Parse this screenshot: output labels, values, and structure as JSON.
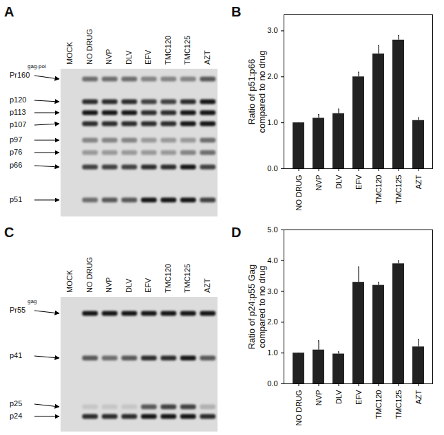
{
  "chart_data": [
    {
      "panel": "B",
      "type": "bar",
      "categories": [
        "NO DRUG",
        "NVP",
        "DLV",
        "EFV",
        "TMC120",
        "TMC125",
        "AZT"
      ],
      "values": [
        1,
        1.1,
        1.2,
        2.0,
        2.5,
        2.8,
        1.05
      ],
      "errors": [
        0,
        0.08,
        0.1,
        0.1,
        0.18,
        0.1,
        0.06
      ],
      "color": "#222222",
      "ylabel": "Ratio of p51:p66\ncompared to no drug",
      "ylim": [
        0,
        3.35
      ],
      "yticks": [
        0,
        1,
        2,
        3
      ]
    },
    {
      "panel": "D",
      "type": "bar",
      "categories": [
        "NO DRUG",
        "NVP",
        "DLV",
        "EFV",
        "TMC120",
        "TMC125",
        "AZT"
      ],
      "values": [
        1,
        1.1,
        0.97,
        3.3,
        3.2,
        3.9,
        1.2
      ],
      "errors": [
        0,
        0.3,
        0.07,
        0.5,
        0.1,
        0.1,
        0.25
      ],
      "color": "#222222",
      "ylabel": "Ratio of p24:p55 Gag\ncompared to no drug",
      "ylim": [
        0,
        5
      ],
      "yticks": [
        0,
        1,
        2,
        3,
        4,
        5
      ]
    }
  ],
  "blots": [
    {
      "panel": "A",
      "lanes": [
        "MOCK",
        "NO DRUG",
        "NVP",
        "DLV",
        "EFV",
        "TMC120",
        "TMC125",
        "AZT"
      ],
      "bands": [
        {
          "label": "Pr160",
          "sup": "gag-pol",
          "intensity": [
            0,
            0.5,
            0.5,
            0.5,
            0.4,
            0.4,
            0.4,
            0.6
          ]
        },
        {
          "label": "p120",
          "intensity": [
            0,
            0.8,
            0.8,
            0.8,
            0.7,
            0.7,
            0.8,
            0.9
          ]
        },
        {
          "label": "p113",
          "intensity": [
            0,
            0.9,
            0.9,
            0.9,
            0.8,
            0.8,
            0.9,
            0.9
          ]
        },
        {
          "label": "p107",
          "intensity": [
            0,
            0.8,
            0.8,
            0.8,
            0.8,
            0.8,
            0.9,
            0.9
          ]
        },
        {
          "label": "p97",
          "intensity": [
            0,
            0.4,
            0.4,
            0.4,
            0.3,
            0.3,
            0.3,
            0.5
          ]
        },
        {
          "label": "p76",
          "intensity": [
            0,
            0.3,
            0.3,
            0.3,
            0.3,
            0.3,
            0.4,
            0.5
          ]
        },
        {
          "label": "p66",
          "intensity": [
            0,
            0.7,
            0.7,
            0.7,
            0.8,
            0.8,
            0.9,
            0.7
          ]
        },
        {
          "label": "p51",
          "intensity": [
            0,
            0.5,
            0.6,
            0.6,
            0.9,
            0.9,
            0.9,
            0.7
          ]
        }
      ]
    },
    {
      "panel": "C",
      "lanes": [
        "MOCK",
        "NO DRUG",
        "NVP",
        "DLV",
        "EFV",
        "TMC120",
        "TMC125",
        "AZT"
      ],
      "bands": [
        {
          "label": "Pr55",
          "sup": "gag",
          "intensity": [
            0,
            0.9,
            0.9,
            0.9,
            0.9,
            0.9,
            0.9,
            0.9
          ]
        },
        {
          "label": "p41",
          "intensity": [
            0,
            0.6,
            0.5,
            0.6,
            0.8,
            0.8,
            0.9,
            0.6
          ]
        },
        {
          "label": "p25",
          "intensity": [
            0,
            0.1,
            0.1,
            0.1,
            0.6,
            0.7,
            0.7,
            0.2
          ]
        },
        {
          "label": "p24",
          "intensity": [
            0,
            0.8,
            0.8,
            0.8,
            0.9,
            0.9,
            0.9,
            0.8
          ]
        }
      ]
    }
  ]
}
